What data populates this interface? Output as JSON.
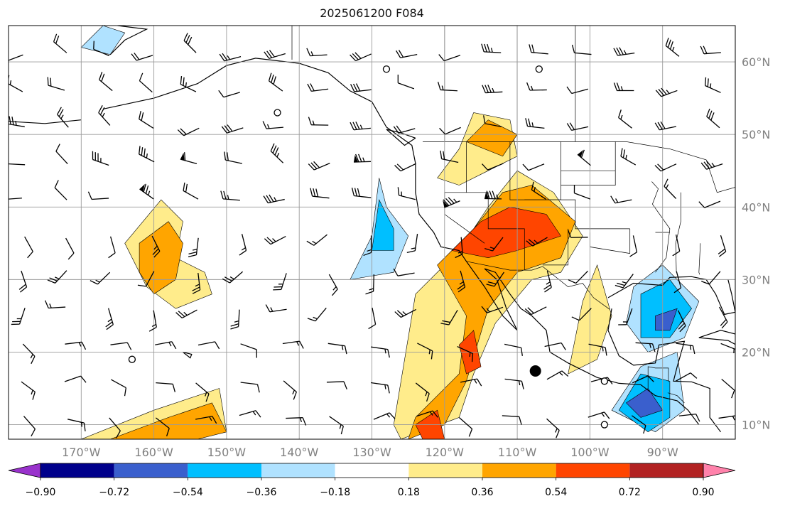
{
  "title": "2025061200 F084",
  "map": {
    "lon_range": [
      -180,
      -80
    ],
    "lat_range": [
      8,
      65
    ],
    "lon_ticks": [
      -170,
      -160,
      -150,
      -140,
      -130,
      -120,
      -110,
      -100,
      -90
    ],
    "lat_ticks": [
      10,
      20,
      30,
      40,
      50,
      60
    ],
    "lon_tick_labels": [
      "170°W",
      "160°W",
      "150°W",
      "140°W",
      "130°W",
      "120°W",
      "110°W",
      "100°W",
      "90°W"
    ],
    "lat_tick_labels": [
      "10°N",
      "20°N",
      "30°N",
      "40°N",
      "50°N",
      "60°N"
    ],
    "grid": true,
    "label_color": "#808080"
  },
  "colorbar": {
    "tick_labels": [
      "−0.90",
      "−0.72",
      "−0.54",
      "−0.36",
      "−0.18",
      "0.18",
      "0.36",
      "0.54",
      "0.72",
      "0.90"
    ],
    "levels": [
      -0.9,
      -0.72,
      -0.54,
      -0.36,
      -0.18,
      0.18,
      0.36,
      0.54,
      0.72,
      0.9
    ],
    "colors": [
      "#9932cc",
      "#00008b",
      "#3a5fcd",
      "#00bfff",
      "#b0e2ff",
      "#ffffff",
      "#ffec8b",
      "#ffa500",
      "#ff4500",
      "#b22222",
      "#ff82ab"
    ],
    "extend": "both"
  },
  "field": {
    "positive_regions": [
      {
        "name": "hawaii-west",
        "level": 0.36,
        "points": [
          [
            -162,
            35
          ],
          [
            -158,
            38
          ],
          [
            -156,
            35
          ],
          [
            -157,
            30
          ],
          [
            -160,
            28
          ],
          [
            -162,
            31
          ]
        ]
      },
      {
        "name": "north-pacific-sw",
        "level": 0.18,
        "points": [
          [
            -164,
            35
          ],
          [
            -159,
            41
          ],
          [
            -156,
            38
          ],
          [
            -157,
            33
          ],
          [
            -153,
            31
          ],
          [
            -152,
            28
          ],
          [
            -157,
            26
          ],
          [
            -161,
            29
          ]
        ]
      },
      {
        "name": "socal-main",
        "level": 0.18,
        "points": [
          [
            -124,
            28
          ],
          [
            -118,
            34
          ],
          [
            -114,
            40
          ],
          [
            -110,
            45
          ],
          [
            -105,
            42
          ],
          [
            -101,
            36
          ],
          [
            -104,
            31
          ],
          [
            -108,
            30
          ],
          [
            -113,
            24
          ],
          [
            -116,
            17
          ],
          [
            -118,
            11
          ],
          [
            -126,
            8
          ],
          [
            -127,
            10
          ]
        ]
      },
      {
        "name": "socal-core",
        "level": 0.36,
        "points": [
          [
            -121,
            32
          ],
          [
            -116,
            37
          ],
          [
            -112,
            42
          ],
          [
            -108,
            43
          ],
          [
            -102,
            38
          ],
          [
            -104,
            33
          ],
          [
            -110,
            31
          ],
          [
            -114,
            26
          ],
          [
            -117,
            16
          ],
          [
            -120,
            10
          ],
          [
            -125,
            8
          ],
          [
            -124,
            11
          ],
          [
            -118,
            17
          ],
          [
            -117,
            25
          ]
        ]
      },
      {
        "name": "socal-peak",
        "level": 0.54,
        "points": [
          [
            -119,
            34
          ],
          [
            -115,
            38
          ],
          [
            -111,
            40
          ],
          [
            -106,
            39
          ],
          [
            -104,
            36
          ],
          [
            -110,
            34
          ],
          [
            -114,
            33
          ]
        ]
      },
      {
        "name": "baja-peak",
        "level": 0.54,
        "points": [
          [
            -118,
            21
          ],
          [
            -116,
            23
          ],
          [
            -115,
            18
          ],
          [
            -117,
            17
          ]
        ]
      },
      {
        "name": "south-pacific-peak",
        "level": 0.54,
        "points": [
          [
            -124,
            10
          ],
          [
            -121,
            12
          ],
          [
            -120,
            8
          ],
          [
            -123,
            8
          ]
        ]
      },
      {
        "name": "canada-north",
        "level": 0.36,
        "points": [
          [
            -117,
            49
          ],
          [
            -114,
            52
          ],
          [
            -110,
            50
          ],
          [
            -112,
            47
          ]
        ]
      },
      {
        "name": "canada-north-outer",
        "level": 0.18,
        "points": [
          [
            -121,
            44
          ],
          [
            -118,
            48
          ],
          [
            -116,
            53
          ],
          [
            -111,
            52
          ],
          [
            -110,
            47
          ],
          [
            -114,
            45
          ],
          [
            -118,
            43
          ]
        ]
      },
      {
        "name": "mexico-east",
        "level": 0.18,
        "points": [
          [
            -103,
            17
          ],
          [
            -101,
            27
          ],
          [
            -99,
            32
          ],
          [
            -97,
            25
          ],
          [
            -99,
            19
          ]
        ]
      },
      {
        "name": "south-160w",
        "level": 0.36,
        "points": [
          [
            -166,
            8
          ],
          [
            -158,
            11
          ],
          [
            -152,
            13
          ],
          [
            -150,
            9
          ],
          [
            -154,
            8
          ]
        ]
      },
      {
        "name": "south-160w-outer",
        "level": 0.18,
        "points": [
          [
            -170,
            8
          ],
          [
            -160,
            12
          ],
          [
            -151,
            15
          ],
          [
            -150,
            9
          ],
          [
            -155,
            8
          ]
        ]
      }
    ],
    "negative_regions": [
      {
        "name": "pacific-nw-offshore",
        "level": -0.18,
        "points": [
          [
            -133,
            30
          ],
          [
            -130,
            36
          ],
          [
            -129,
            44
          ],
          [
            -128,
            40
          ],
          [
            -125,
            36
          ],
          [
            -127,
            31
          ]
        ]
      },
      {
        "name": "pacific-nw-offshore-core",
        "level": -0.36,
        "points": [
          [
            -130,
            34
          ],
          [
            -129,
            41
          ],
          [
            -127,
            37
          ],
          [
            -127,
            34
          ]
        ]
      },
      {
        "name": "gulf-of-mexico",
        "level": -0.18,
        "points": [
          [
            -94,
            29
          ],
          [
            -90,
            32
          ],
          [
            -85,
            27
          ],
          [
            -87,
            22
          ],
          [
            -92,
            20
          ],
          [
            -95,
            24
          ]
        ]
      },
      {
        "name": "gulf-of-mexico-core",
        "level": -0.36,
        "points": [
          [
            -93,
            28
          ],
          [
            -89,
            30
          ],
          [
            -86,
            26
          ],
          [
            -89,
            22
          ],
          [
            -93,
            22
          ]
        ]
      },
      {
        "name": "gulf-of-mexico-peak",
        "level": -0.54,
        "points": [
          [
            -91,
            25
          ],
          [
            -88,
            26
          ],
          [
            -89,
            23
          ],
          [
            -91,
            23
          ]
        ]
      },
      {
        "name": "central-america",
        "level": -0.18,
        "points": [
          [
            -97,
            12
          ],
          [
            -93,
            18
          ],
          [
            -88,
            20
          ],
          [
            -87,
            12
          ],
          [
            -91,
            9
          ]
        ]
      },
      {
        "name": "central-america-core",
        "level": -0.36,
        "points": [
          [
            -96,
            12
          ],
          [
            -93,
            17
          ],
          [
            -89,
            16
          ],
          [
            -89,
            11
          ],
          [
            -92,
            9
          ]
        ]
      },
      {
        "name": "central-america-peak",
        "level": -0.54,
        "points": [
          [
            -95,
            13
          ],
          [
            -92,
            15
          ],
          [
            -90,
            12
          ],
          [
            -93,
            11
          ]
        ]
      },
      {
        "name": "bering-north",
        "level": -0.18,
        "points": [
          [
            -170,
            62
          ],
          [
            -167,
            65
          ],
          [
            -164,
            64
          ],
          [
            -166,
            61
          ]
        ]
      }
    ]
  },
  "barbs": {
    "rows": [
      61,
      56,
      51,
      46,
      41,
      36,
      31,
      26,
      21,
      16,
      11
    ],
    "cols": [
      -178,
      -172,
      -166,
      -160,
      -154,
      -148,
      -142,
      -136,
      -130,
      -124,
      -118,
      -112,
      -106,
      -100,
      -94,
      -88,
      -82
    ]
  }
}
